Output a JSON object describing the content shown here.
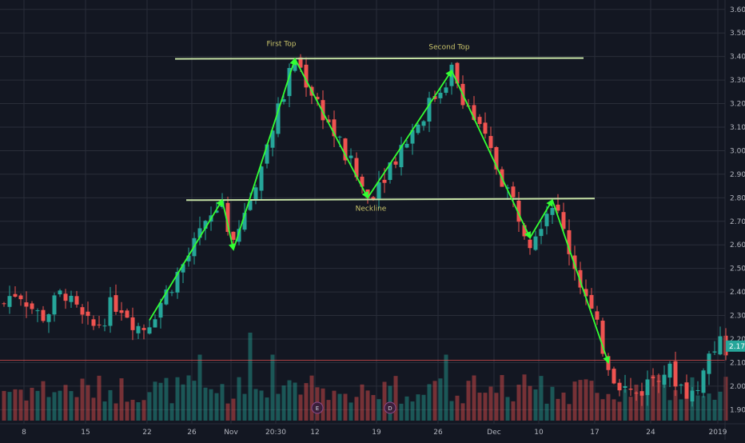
{
  "chart_data": {
    "type": "candlestick",
    "title": "",
    "xlabel": "",
    "ylabel": "",
    "ylim": [
      1.84,
      3.64
    ],
    "grid": true,
    "y_axis": {
      "position": "right",
      "ticks": [
        "3.60",
        "3.50",
        "3.40",
        "3.30",
        "3.20",
        "3.10",
        "3.00",
        "2.90",
        "2.80",
        "2.70",
        "2.60",
        "2.50",
        "2.40",
        "2.30",
        "2.20",
        "2.10",
        "2.00",
        "1.90"
      ],
      "tick_values": [
        3.6,
        3.5,
        3.4,
        3.3,
        3.2,
        3.1,
        3.0,
        2.9,
        2.8,
        2.7,
        2.6,
        2.5,
        2.4,
        2.3,
        2.2,
        2.1,
        2.0,
        1.9
      ]
    },
    "x_axis": {
      "ticks": [
        "8",
        "15",
        "22",
        "26",
        "Nov",
        "20:30",
        "12",
        "19",
        "26",
        "Dec",
        "10",
        "17",
        "24",
        "2019"
      ],
      "tick_index": [
        4,
        15,
        26,
        34,
        41,
        49,
        56,
        67,
        78,
        88,
        96,
        106,
        116,
        128
      ]
    },
    "last_price": {
      "label": "2.17",
      "value": 2.17,
      "color": "#26a69a"
    },
    "price_line": {
      "value": 2.11,
      "color": "#ef5350"
    },
    "annotations": {
      "first_top": "First Top",
      "second_top": "Second Top",
      "neckline": "Neckline",
      "resistance_level": 3.39,
      "neckline_level": 2.79
    },
    "event_badges": [
      {
        "label": "E",
        "index": 56
      },
      {
        "label": "D",
        "index": 69
      }
    ],
    "colors": {
      "up": "#26a69a",
      "down": "#ef5350",
      "background": "#131722",
      "grid": "#2a2e39",
      "trendline": "#c5e1a5",
      "arrow": "#33ff33",
      "text": "#b2b5be",
      "annotation": "#c9c36a"
    },
    "arrow_path": [
      {
        "index": 26,
        "price": 2.28
      },
      {
        "index": 39,
        "price": 2.79
      },
      {
        "index": 41,
        "price": 2.58
      },
      {
        "index": 52,
        "price": 3.39
      },
      {
        "index": 65,
        "price": 2.8
      },
      {
        "index": 80,
        "price": 3.34
      },
      {
        "index": 94,
        "price": 2.63
      },
      {
        "index": 98,
        "price": 2.79
      },
      {
        "index": 108,
        "price": 2.1
      }
    ]
  }
}
